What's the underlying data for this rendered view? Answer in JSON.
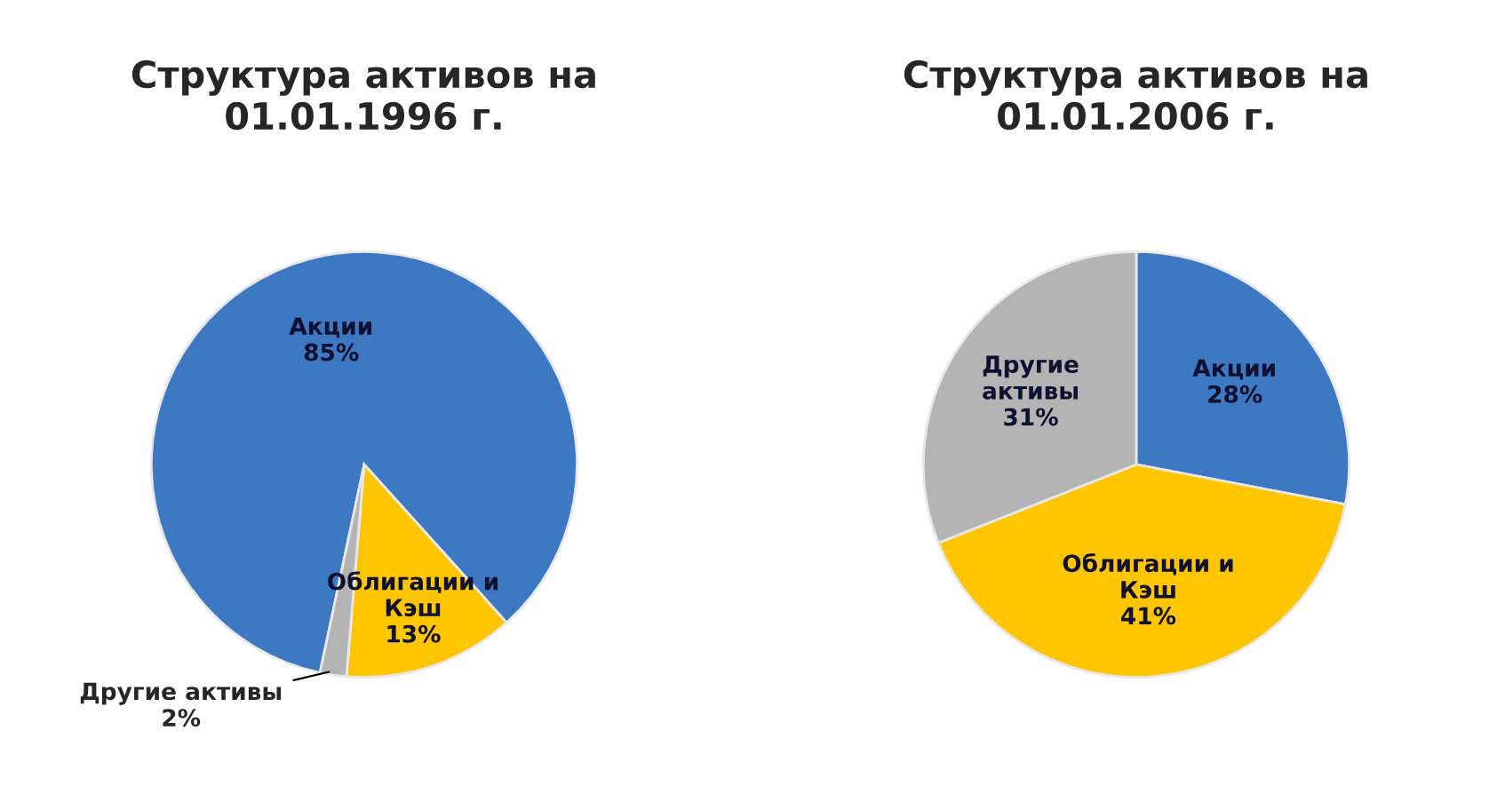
{
  "chart_data": [
    {
      "type": "pie",
      "title": "Структура активов на\n01.01.1996 г.",
      "categories": [
        "Акции",
        "Облигации и\nКэш",
        "Другие активы"
      ],
      "values": [
        85,
        13,
        2
      ],
      "value_labels": [
        "85%",
        "13%",
        "2%"
      ],
      "colors": [
        "#3f78c2",
        "#ffc600",
        "#b4b4b4"
      ]
    },
    {
      "type": "pie",
      "title": "Структура активов на\n01.01.2006 г.",
      "categories": [
        "Акции",
        "Облигации и\nКэш",
        "Другие\nактивы"
      ],
      "values": [
        28,
        41,
        31
      ],
      "value_labels": [
        "28%",
        "41%",
        "31%"
      ],
      "colors": [
        "#3f78c2",
        "#ffc600",
        "#b4b4b4"
      ]
    }
  ]
}
